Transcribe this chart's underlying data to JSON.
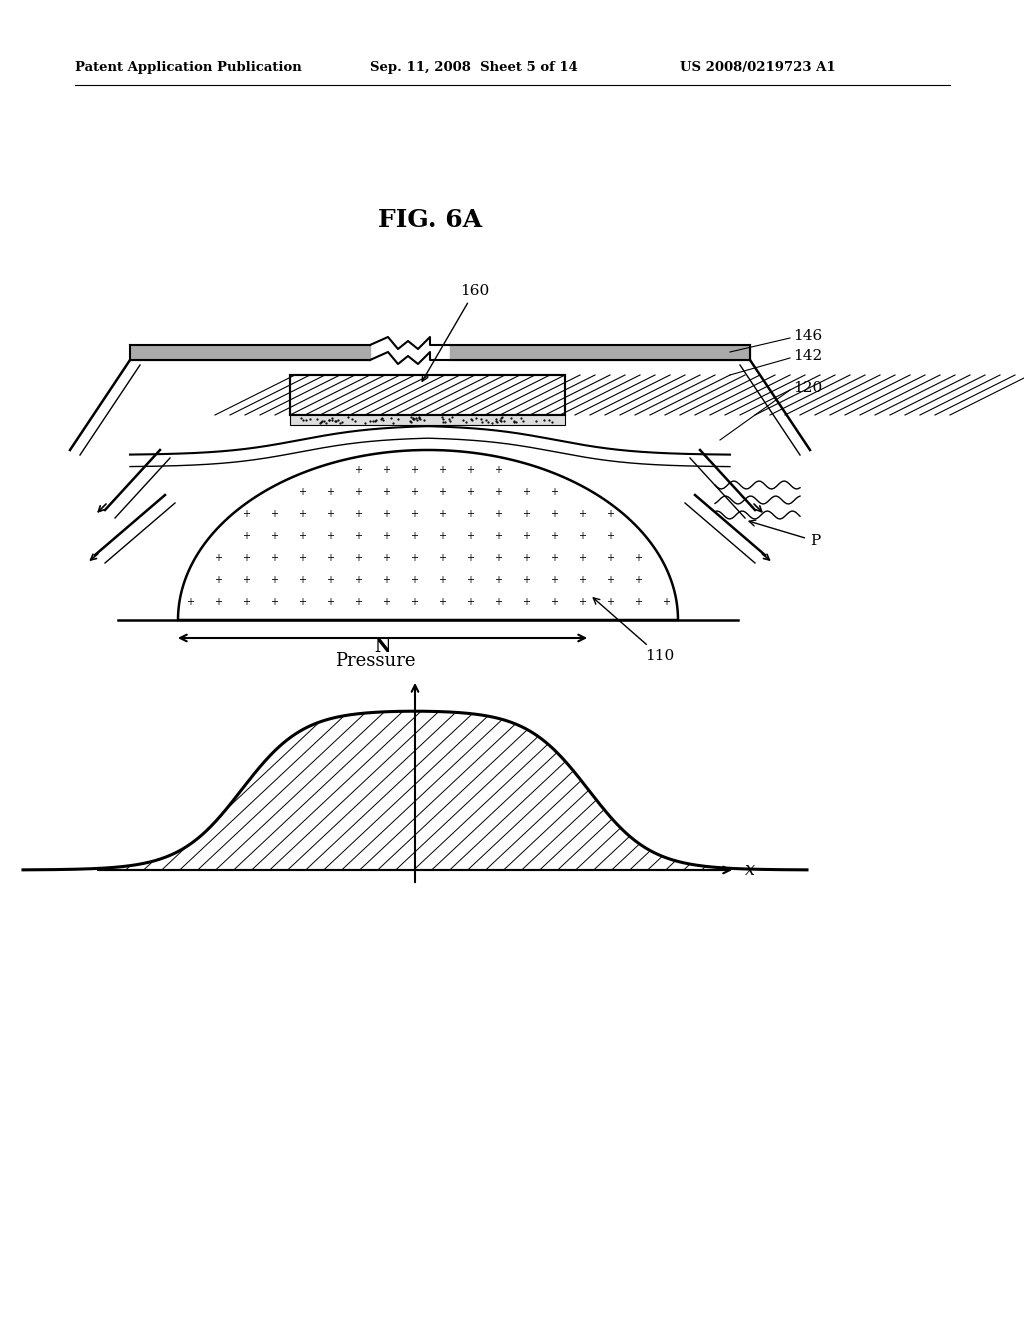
{
  "background_color": "#ffffff",
  "header_left": "Patent Application Publication",
  "header_center": "Sep. 11, 2008  Sheet 5 of 14",
  "header_right": "US 2008/0219723 A1",
  "figure_title": "FIG. 6A",
  "label_160": "160",
  "label_146": "146",
  "label_142": "142",
  "label_120": "120",
  "label_P": "P",
  "label_N": "N",
  "label_110": "110",
  "label_Pressure": "Pressure",
  "label_x": "x"
}
